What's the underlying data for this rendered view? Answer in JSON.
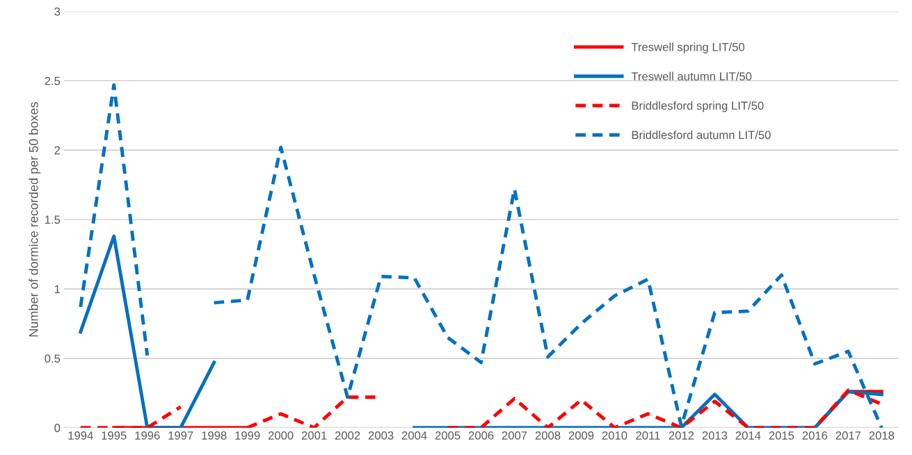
{
  "chart_data": {
    "type": "line",
    "ylabel": "Number of dormice recorded per 50 boxes",
    "categories": [
      "1994",
      "1995",
      "1996",
      "1997",
      "1998",
      "1999",
      "2000",
      "2001",
      "2002",
      "2003",
      "2004",
      "2005",
      "2006",
      "2007",
      "2008",
      "2009",
      "2010",
      "2011",
      "2012",
      "2013",
      "2014",
      "2015",
      "2016",
      "2017",
      "2018"
    ],
    "series": [
      {
        "name": "Treswell spring LIT/50",
        "color": "#ff0000",
        "line_style": "solid",
        "values": [
          null,
          0,
          0,
          0,
          0,
          0,
          null,
          null,
          null,
          null,
          null,
          null,
          null,
          null,
          null,
          null,
          null,
          null,
          null,
          null,
          null,
          null,
          0,
          0.26,
          0.26
        ]
      },
      {
        "name": "Treswell autumn LIT/50",
        "color": "#0070c0",
        "line_style": "solid",
        "values": [
          0.69,
          1.38,
          0,
          0,
          0.47,
          null,
          null,
          null,
          null,
          null,
          0,
          0,
          0,
          0,
          0,
          0,
          0,
          0,
          0,
          0.24,
          0,
          0,
          0,
          0.26,
          0.24
        ]
      },
      {
        "name": "Briddlesford spring LIT/50",
        "color": "#fe0000",
        "line_style": "dashed",
        "values": [
          0,
          0,
          0,
          0.15,
          null,
          0,
          0.1,
          0,
          0.22,
          0.22,
          null,
          0,
          0,
          0.21,
          0,
          0.2,
          0,
          0.1,
          0,
          0.19,
          0,
          0,
          0,
          0.27,
          0.17
        ]
      },
      {
        "name": "Briddlesford autumn LIT/50",
        "color": "#0071c1",
        "line_style": "dashed",
        "values": [
          0.87,
          2.47,
          0.52,
          null,
          0.9,
          0.92,
          2.02,
          1.1,
          0.22,
          1.09,
          1.08,
          0.65,
          0.47,
          1.72,
          0.51,
          0.75,
          0.95,
          1.07,
          0.01,
          0.83,
          0.84,
          1.1,
          0.46,
          0.55,
          0
        ]
      }
    ],
    "ylim": [
      0,
      3
    ],
    "yticks": [
      0,
      0.5,
      1,
      1.5,
      2,
      2.5,
      3
    ],
    "grid": "y",
    "legend": "top right"
  }
}
